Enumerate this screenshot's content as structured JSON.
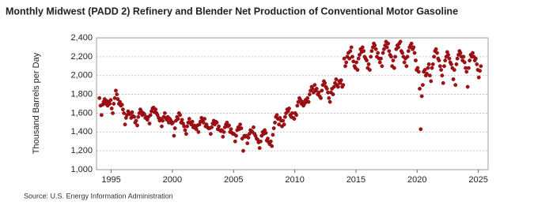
{
  "chart_data": {
    "type": "scatter",
    "title": "Monthly Midwest (PADD 2) Refinery and Blender Net Production of Conventional Motor Gasoline",
    "y_label": "Thousand Barrels per Day",
    "source": "Source: U.S. Energy Information Administration",
    "color": "#a50f15",
    "grid": true,
    "xlim": [
      1993.8,
      2025.8
    ],
    "xticks": [
      1995,
      2000,
      2005,
      2010,
      2015,
      2020,
      2025
    ],
    "ylim": [
      1000,
      2400
    ],
    "yticks": [
      {
        "value": 1000,
        "label": "1,000"
      },
      {
        "value": 1200,
        "label": "1,200"
      },
      {
        "value": 1400,
        "label": "1,400"
      },
      {
        "value": 1600,
        "label": "1,600"
      },
      {
        "value": 1800,
        "label": "1,800"
      },
      {
        "value": 2000,
        "label": "2,000"
      },
      {
        "value": 2200,
        "label": "2,200"
      },
      {
        "value": 2400,
        "label": "2,400"
      }
    ],
    "x": [
      1994.04,
      1994.13,
      1994.21,
      1994.29,
      1994.38,
      1994.46,
      1994.54,
      1994.63,
      1994.71,
      1994.79,
      1994.88,
      1994.96,
      1995.04,
      1995.13,
      1995.21,
      1995.29,
      1995.38,
      1995.46,
      1995.54,
      1995.63,
      1995.71,
      1995.79,
      1995.88,
      1995.96,
      1996.04,
      1996.13,
      1996.21,
      1996.29,
      1996.38,
      1996.46,
      1996.54,
      1996.63,
      1996.71,
      1996.79,
      1996.88,
      1996.96,
      1997.04,
      1997.13,
      1997.21,
      1997.29,
      1997.38,
      1997.46,
      1997.54,
      1997.63,
      1997.71,
      1997.79,
      1997.88,
      1997.96,
      1998.04,
      1998.13,
      1998.21,
      1998.29,
      1998.38,
      1998.46,
      1998.54,
      1998.63,
      1998.71,
      1998.79,
      1998.88,
      1998.96,
      1999.04,
      1999.13,
      1999.21,
      1999.29,
      1999.38,
      1999.46,
      1999.54,
      1999.63,
      1999.71,
      1999.79,
      1999.88,
      1999.96,
      2000.04,
      2000.13,
      2000.21,
      2000.29,
      2000.38,
      2000.46,
      2000.54,
      2000.63,
      2000.71,
      2000.79,
      2000.88,
      2000.96,
      2001.04,
      2001.13,
      2001.21,
      2001.29,
      2001.38,
      2001.46,
      2001.54,
      2001.63,
      2001.71,
      2001.79,
      2001.88,
      2001.96,
      2002.04,
      2002.13,
      2002.21,
      2002.29,
      2002.38,
      2002.46,
      2002.54,
      2002.63,
      2002.71,
      2002.79,
      2002.88,
      2002.96,
      2003.04,
      2003.13,
      2003.21,
      2003.29,
      2003.38,
      2003.46,
      2003.54,
      2003.63,
      2003.71,
      2003.79,
      2003.88,
      2003.96,
      2004.04,
      2004.13,
      2004.21,
      2004.29,
      2004.38,
      2004.46,
      2004.54,
      2004.63,
      2004.71,
      2004.79,
      2004.88,
      2004.96,
      2005.04,
      2005.13,
      2005.21,
      2005.29,
      2005.38,
      2005.46,
      2005.54,
      2005.63,
      2005.71,
      2005.79,
      2005.88,
      2005.96,
      2006.04,
      2006.13,
      2006.21,
      2006.29,
      2006.38,
      2006.46,
      2006.54,
      2006.63,
      2006.71,
      2006.79,
      2006.88,
      2006.96,
      2007.04,
      2007.13,
      2007.21,
      2007.29,
      2007.38,
      2007.46,
      2007.54,
      2007.63,
      2007.71,
      2007.79,
      2007.88,
      2007.96,
      2008.04,
      2008.13,
      2008.21,
      2008.29,
      2008.38,
      2008.46,
      2008.54,
      2008.63,
      2008.71,
      2008.79,
      2008.88,
      2008.96,
      2009.04,
      2009.13,
      2009.21,
      2009.29,
      2009.38,
      2009.46,
      2009.54,
      2009.63,
      2009.71,
      2009.79,
      2009.88,
      2009.96,
      2010.04,
      2010.13,
      2010.21,
      2010.29,
      2010.38,
      2010.46,
      2010.54,
      2010.63,
      2010.71,
      2010.79,
      2010.88,
      2010.96,
      2011.04,
      2011.13,
      2011.21,
      2011.29,
      2011.38,
      2011.46,
      2011.54,
      2011.63,
      2011.71,
      2011.79,
      2011.88,
      2011.96,
      2012.04,
      2012.13,
      2012.21,
      2012.29,
      2012.38,
      2012.46,
      2012.54,
      2012.63,
      2012.71,
      2012.79,
      2012.88,
      2012.96,
      2013.04,
      2013.13,
      2013.21,
      2013.29,
      2013.38,
      2013.46,
      2013.54,
      2013.63,
      2013.71,
      2013.79,
      2013.88,
      2013.96,
      2014.04,
      2014.13,
      2014.21,
      2014.29,
      2014.38,
      2014.46,
      2014.54,
      2014.63,
      2014.71,
      2014.79,
      2014.88,
      2014.96,
      2015.04,
      2015.13,
      2015.21,
      2015.29,
      2015.38,
      2015.46,
      2015.54,
      2015.63,
      2015.71,
      2015.79,
      2015.88,
      2015.96,
      2016.04,
      2016.13,
      2016.21,
      2016.29,
      2016.38,
      2016.46,
      2016.54,
      2016.63,
      2016.71,
      2016.79,
      2016.88,
      2016.96,
      2017.04,
      2017.13,
      2017.21,
      2017.29,
      2017.38,
      2017.46,
      2017.54,
      2017.63,
      2017.71,
      2017.79,
      2017.88,
      2017.96,
      2018.04,
      2018.13,
      2018.21,
      2018.29,
      2018.38,
      2018.46,
      2018.54,
      2018.63,
      2018.71,
      2018.79,
      2018.88,
      2018.96,
      2019.04,
      2019.13,
      2019.21,
      2019.29,
      2019.38,
      2019.46,
      2019.54,
      2019.63,
      2019.71,
      2019.79,
      2019.88,
      2019.96,
      2020.04,
      2020.13,
      2020.21,
      2020.29,
      2020.38,
      2020.46,
      2020.54,
      2020.63,
      2020.71,
      2020.79,
      2020.88,
      2020.96,
      2021.04,
      2021.13,
      2021.21,
      2021.29,
      2021.38,
      2021.46,
      2021.54,
      2021.63,
      2021.71,
      2021.79,
      2021.88,
      2021.96,
      2022.04,
      2022.13,
      2022.21,
      2022.29,
      2022.38,
      2022.46,
      2022.54,
      2022.63,
      2022.71,
      2022.79,
      2022.88,
      2022.96,
      2023.04,
      2023.13,
      2023.21,
      2023.29,
      2023.38,
      2023.46,
      2023.54,
      2023.63,
      2023.71,
      2023.79,
      2023.88,
      2023.96,
      2024.04,
      2024.13,
      2024.21,
      2024.29,
      2024.38,
      2024.46,
      2024.54,
      2024.63,
      2024.71,
      2024.79,
      2024.88,
      2024.96,
      2025.04,
      2025.13,
      2025.21
    ],
    "values": [
      1760,
      1680,
      1580,
      1690,
      1720,
      1750,
      1700,
      1730,
      1680,
      1720,
      1700,
      1740,
      1650,
      1600,
      1700,
      1760,
      1840,
      1800,
      1750,
      1700,
      1720,
      1680,
      1690,
      1640,
      1600,
      1480,
      1550,
      1580,
      1620,
      1600,
      1590,
      1550,
      1610,
      1570,
      1560,
      1500,
      1520,
      1470,
      1560,
      1600,
      1640,
      1620,
      1580,
      1600,
      1590,
      1550,
      1560,
      1530,
      1560,
      1490,
      1580,
      1620,
      1650,
      1660,
      1610,
      1640,
      1600,
      1580,
      1550,
      1520,
      1540,
      1460,
      1520,
      1560,
      1600,
      1550,
      1530,
      1560,
      1500,
      1540,
      1520,
      1490,
      1500,
      1360,
      1440,
      1520,
      1560,
      1540,
      1600,
      1580,
      1500,
      1530,
      1490,
      1460,
      1420,
      1380,
      1460,
      1500,
      1540,
      1500,
      1480,
      1510,
      1450,
      1470,
      1440,
      1430,
      1470,
      1400,
      1480,
      1510,
      1550,
      1520,
      1500,
      1540,
      1460,
      1480,
      1450,
      1440,
      1440,
      1380,
      1450,
      1490,
      1520,
      1480,
      1510,
      1500,
      1430,
      1460,
      1420,
      1410,
      1420,
      1350,
      1400,
      1450,
      1480,
      1500,
      1460,
      1470,
      1400,
      1430,
      1390,
      1380,
      1380,
      1300,
      1360,
      1420,
      1450,
      1430,
      1480,
      1440,
      1330,
      1200,
      1360,
      1350,
      1360,
      1280,
      1340,
      1380,
      1420,
      1410,
      1400,
      1450,
      1380,
      1360,
      1330,
      1320,
      1290,
      1230,
      1300,
      1360,
      1400,
      1380,
      1420,
      1390,
      1310,
      1330,
      1290,
      1270,
      1300,
      1250,
      1370,
      1440,
      1500,
      1560,
      1580,
      1540,
      1480,
      1550,
      1520,
      1460,
      1520,
      1480,
      1560,
      1600,
      1640,
      1620,
      1650,
      1580,
      1560,
      1600,
      1550,
      1540,
      1600,
      1580,
      1680,
      1720,
      1760,
      1740,
      1700,
      1720,
      1680,
      1700,
      1740,
      1720,
      1760,
      1720,
      1800,
      1840,
      1880,
      1860,
      1820,
      1900,
      1840,
      1860,
      1800,
      1820,
      1780,
      1760,
      1840,
      1900,
      1940,
      1920,
      1880,
      1860,
      1820,
      1760,
      1720,
      1820,
      1860,
      1800,
      1880,
      1920,
      1960,
      1900,
      1880,
      1940,
      1920,
      1950,
      1880,
      1900,
      2180,
      2100,
      2140,
      2200,
      2240,
      2180,
      2260,
      2300,
      2200,
      2150,
      2100,
      2080,
      2140,
      2060,
      2180,
      2220,
      2280,
      2250,
      2300,
      2260,
      2200,
      2180,
      2160,
      2080,
      2120,
      2060,
      2200,
      2260,
      2300,
      2340,
      2320,
      2280,
      2200,
      2240,
      2180,
      2140,
      2180,
      2100,
      2240,
      2280,
      2320,
      2360,
      2300,
      2340,
      2260,
      2220,
      2200,
      2100,
      2160,
      2080,
      2200,
      2280,
      2320,
      2300,
      2340,
      2360,
      2260,
      2240,
      2200,
      2140,
      2180,
      2100,
      2200,
      2260,
      2300,
      2320,
      2340,
      2280,
      2300,
      2240,
      2160,
      2060,
      2080,
      2040,
      1860,
      1430,
      1780,
      1900,
      2040,
      2060,
      2000,
      2020,
      2080,
      2120,
      2000,
      1940,
      2080,
      2120,
      2200,
      2260,
      2280,
      2240,
      2180,
      2160,
      2100,
      2060,
      2000,
      1920,
      2100,
      2160,
      2200,
      2250,
      2220,
      2180,
      2140,
      2120,
      2080,
      1960,
      2060,
      1900,
      2120,
      2180,
      2220,
      2260,
      2240,
      2200,
      2160,
      2200,
      2140,
      2080,
      2040,
      1880,
      2080,
      2160,
      2220,
      2200,
      2240,
      2200,
      2160,
      2180,
      2120,
      2060,
      1980,
      2050,
      2100
    ]
  }
}
